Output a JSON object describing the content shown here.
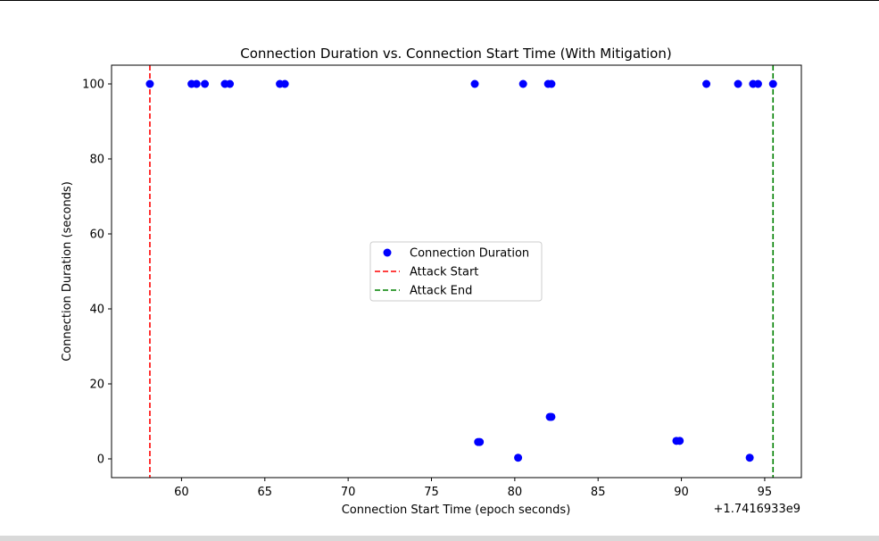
{
  "chart_data": {
    "type": "scatter",
    "title": "Connection Duration vs. Connection Start Time (With Mitigation)",
    "xlabel": "Connection Start Time (epoch seconds)",
    "ylabel": "Connection Duration (seconds)",
    "x_offset_label": "+1.7416933e9",
    "xlim": [
      55.8,
      97.2
    ],
    "ylim": [
      -5,
      105
    ],
    "xticks": [
      60,
      65,
      70,
      75,
      80,
      85,
      90,
      95
    ],
    "yticks": [
      0,
      20,
      40,
      60,
      80,
      100
    ],
    "grid": false,
    "legend_position": "center",
    "series": [
      {
        "name": "Connection Duration",
        "color": "#0000ff",
        "marker": "circle",
        "points": [
          [
            58.1,
            100
          ],
          [
            60.6,
            100
          ],
          [
            60.9,
            100
          ],
          [
            61.4,
            100
          ],
          [
            62.6,
            100
          ],
          [
            62.9,
            100
          ],
          [
            65.9,
            100
          ],
          [
            66.2,
            100
          ],
          [
            77.6,
            100
          ],
          [
            80.5,
            100
          ],
          [
            82.0,
            100
          ],
          [
            82.2,
            100
          ],
          [
            91.5,
            100
          ],
          [
            93.4,
            100
          ],
          [
            94.3,
            100
          ],
          [
            94.6,
            100
          ],
          [
            95.5,
            100
          ],
          [
            77.8,
            4.5
          ],
          [
            77.9,
            4.5
          ],
          [
            80.2,
            0.3
          ],
          [
            82.1,
            11.2
          ],
          [
            82.2,
            11.2
          ],
          [
            89.7,
            4.8
          ],
          [
            89.9,
            4.8
          ],
          [
            94.1,
            0.3
          ]
        ]
      }
    ],
    "vlines": [
      {
        "name": "Attack Start",
        "x": 58.1,
        "color": "#ff0000",
        "style": "dashed"
      },
      {
        "name": "Attack End",
        "x": 95.5,
        "color": "#008000",
        "style": "dashed"
      }
    ],
    "legend": [
      {
        "label": "Connection Duration",
        "kind": "marker",
        "color": "#0000ff"
      },
      {
        "label": "Attack Start",
        "kind": "line",
        "color": "#ff0000"
      },
      {
        "label": "Attack End",
        "kind": "line",
        "color": "#008000"
      }
    ]
  }
}
